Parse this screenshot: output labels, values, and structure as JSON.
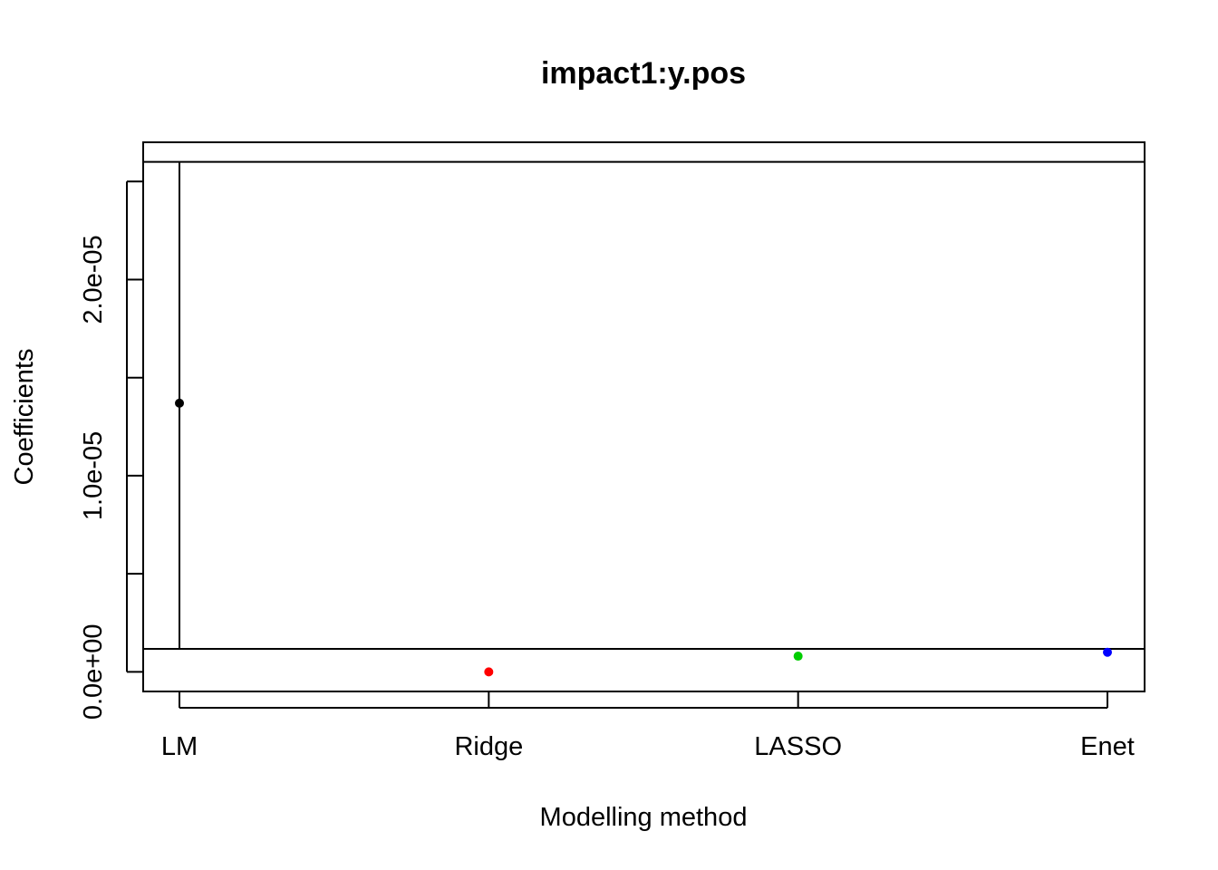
{
  "chart_data": {
    "type": "scatter",
    "title": "impact1:y.pos",
    "xlabel": "Modelling method",
    "ylabel": "Coefficients",
    "categories": [
      "LM",
      "Ridge",
      "LASSO",
      "Enet"
    ],
    "values": [
      1.37e-05,
      0.0,
      8e-07,
      1e-06
    ],
    "colors": [
      "#000000",
      "#FF0000",
      "#00CD00",
      "#0000FF"
    ],
    "y_ticks": [
      0,
      5e-06,
      1e-05,
      1.5e-05,
      2e-05,
      2.5e-05
    ],
    "y_tick_labels": [
      "0.0e+00",
      "",
      "1.0e-05",
      "",
      "2.0e-05",
      ""
    ],
    "ylim": [
      -1e-06,
      2.7e-05
    ],
    "grid": false,
    "legend": "none",
    "reference_lines": {
      "horizontal": [
        1.17e-06,
        2.6e-05
      ],
      "lm_interval": [
        1.17e-06,
        2.6e-05
      ]
    }
  }
}
